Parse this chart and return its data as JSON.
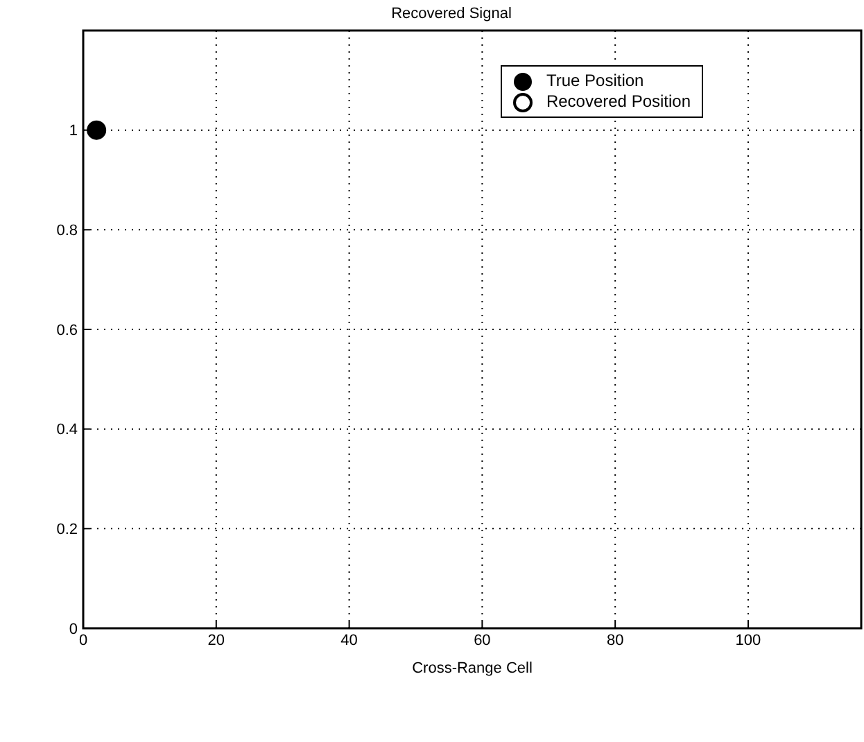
{
  "chart_data": {
    "type": "scatter",
    "title": "Recovered Signal",
    "xlabel": "Cross-Range Cell",
    "series": [
      {
        "name": "True Position",
        "color": "#000000",
        "marker": "circle",
        "x": [
          2
        ],
        "values": [
          1
        ]
      },
      {
        "name": "Recovered Position",
        "color": "#000000",
        "marker": "circle",
        "x": [
          2
        ],
        "values": [
          1
        ]
      }
    ],
    "xlim": [
      0,
      117
    ],
    "xticks": [
      0,
      20,
      40,
      60,
      80,
      100
    ],
    "ylim": [
      0,
      1.2
    ],
    "yticks": [
      0,
      0.2,
      0.4,
      0.6,
      0.8,
      1
    ],
    "grid": true,
    "legend": "top right"
  }
}
